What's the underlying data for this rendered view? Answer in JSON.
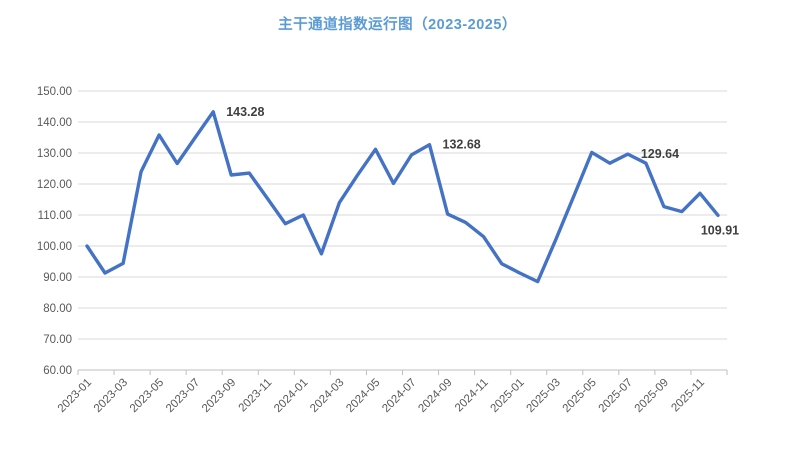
{
  "title": "主干通道指数运行图（2023-2025）",
  "colors": {
    "title": "#5b9bd5",
    "line": "#4472c4",
    "grid": "#d9d9d9",
    "axis": "#bfbfbf",
    "tick_label": "#595959",
    "data_label": "#3f3f3f",
    "background": "#ffffff"
  },
  "chart_data": {
    "type": "line",
    "title": "主干通道指数运行图（2023-2025）",
    "xlabel": "",
    "ylabel": "",
    "ylim": [
      60,
      150
    ],
    "y_step": 10,
    "grid": true,
    "legend_position": "none",
    "y_tick_labels": [
      "150.00",
      "140.00",
      "130.00",
      "120.00",
      "110.00",
      "100.00",
      "90.00",
      "80.00",
      "70.00",
      "60.00"
    ],
    "x_tick_labels": [
      "2023-01",
      "2023-03",
      "2023-05",
      "2023-07",
      "2023-09",
      "2023-11",
      "2024-01",
      "2024-03",
      "2024-05",
      "2024-07",
      "2024-09",
      "2024-11",
      "2025-01",
      "2025-03",
      "2025-05",
      "2025-07",
      "2025-09",
      "2025-11"
    ],
    "categories": [
      "2023-01",
      "2023-02",
      "2023-03",
      "2023-04",
      "2023-05",
      "2023-06",
      "2023-07",
      "2023-08",
      "2023-09",
      "2023-10",
      "2023-11",
      "2023-12",
      "2024-01",
      "2024-02",
      "2024-03",
      "2024-04",
      "2024-05",
      "2024-06",
      "2024-07",
      "2024-08",
      "2024-09",
      "2024-10",
      "2024-11",
      "2024-12",
      "2025-01",
      "2025-02",
      "2025-03",
      "2025-04",
      "2025-05",
      "2025-06",
      "2025-07",
      "2025-08",
      "2025-09",
      "2025-10",
      "2025-11",
      "2025-12"
    ],
    "values": [
      100.0,
      91.3,
      94.4,
      124.0,
      135.8,
      126.6,
      135.0,
      143.28,
      122.9,
      123.5,
      115.4,
      107.2,
      110.0,
      97.5,
      114.0,
      122.8,
      131.2,
      120.2,
      129.4,
      132.68,
      110.3,
      107.6,
      103.0,
      94.3,
      91.3,
      88.5,
      102.0,
      116.1,
      130.2,
      126.7,
      129.64,
      126.7,
      112.7,
      111.1,
      117.0,
      109.91
    ],
    "annotations": [
      {
        "category": "2023-08",
        "text": "143.28",
        "placement": "right"
      },
      {
        "category": "2024-08",
        "text": "132.68",
        "placement": "right"
      },
      {
        "category": "2025-07",
        "text": "129.64",
        "placement": "right"
      },
      {
        "category": "2025-12",
        "text": "109.91",
        "placement": "below"
      }
    ]
  }
}
